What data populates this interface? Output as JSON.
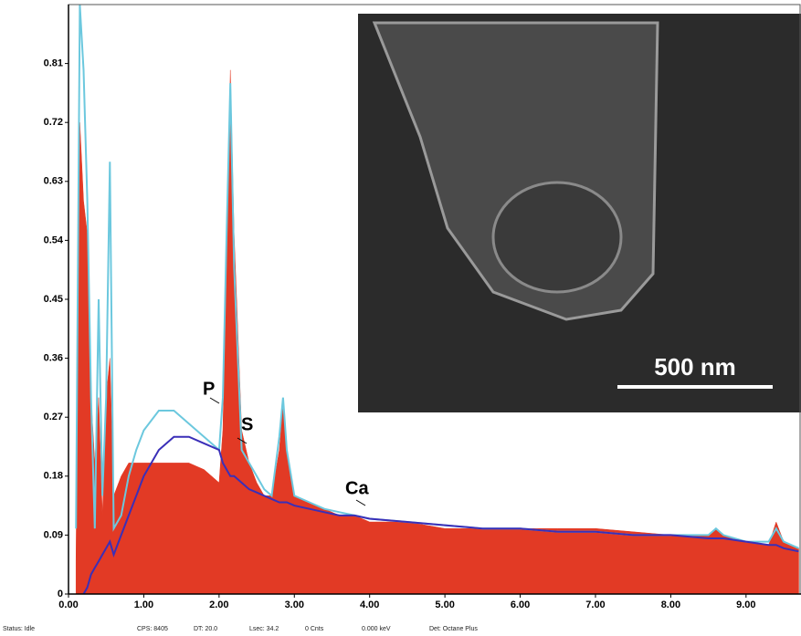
{
  "chart_data": {
    "type": "spectrum",
    "x": [
      0.1,
      0.15,
      0.2,
      0.25,
      0.3,
      0.35,
      0.4,
      0.45,
      0.5,
      0.55,
      0.6,
      0.7,
      0.8,
      0.9,
      1.0,
      1.2,
      1.4,
      1.6,
      1.8,
      2.0,
      2.05,
      2.1,
      2.15,
      2.2,
      2.3,
      2.4,
      2.5,
      2.6,
      2.7,
      2.8,
      2.85,
      2.9,
      3.0,
      3.2,
      3.4,
      3.6,
      3.8,
      4.0,
      4.5,
      5.0,
      5.5,
      6.0,
      6.5,
      7.0,
      7.5,
      8.0,
      8.5,
      8.6,
      8.7,
      9.0,
      9.3,
      9.4,
      9.5,
      9.7
    ],
    "series": [
      {
        "color": "#e23a25",
        "style": "area",
        "values": [
          0.05,
          0.72,
          0.6,
          0.55,
          0.3,
          0.2,
          0.3,
          0.12,
          0.3,
          0.36,
          0.15,
          0.18,
          0.2,
          0.2,
          0.2,
          0.2,
          0.2,
          0.2,
          0.19,
          0.17,
          0.25,
          0.5,
          0.8,
          0.55,
          0.25,
          0.2,
          0.17,
          0.15,
          0.15,
          0.22,
          0.29,
          0.22,
          0.15,
          0.14,
          0.13,
          0.12,
          0.12,
          0.11,
          0.11,
          0.1,
          0.1,
          0.1,
          0.1,
          0.1,
          0.095,
          0.09,
          0.09,
          0.1,
          0.09,
          0.08,
          0.075,
          0.11,
          0.08,
          0.07
        ]
      },
      {
        "color": "#6cc8de",
        "style": "line",
        "values": [
          0.1,
          0.9,
          0.8,
          0.6,
          0.3,
          0.1,
          0.45,
          0.15,
          0.3,
          0.66,
          0.1,
          0.12,
          0.18,
          0.22,
          0.25,
          0.28,
          0.28,
          0.26,
          0.24,
          0.22,
          0.3,
          0.55,
          0.78,
          0.5,
          0.22,
          0.2,
          0.18,
          0.16,
          0.15,
          0.24,
          0.3,
          0.22,
          0.15,
          0.14,
          0.13,
          0.125,
          0.12,
          0.115,
          0.11,
          0.105,
          0.1,
          0.1,
          0.095,
          0.095,
          0.09,
          0.09,
          0.09,
          0.1,
          0.09,
          0.08,
          0.08,
          0.1,
          0.08,
          0.07
        ]
      },
      {
        "color": "#3a2fb8",
        "style": "line",
        "values": [
          null,
          null,
          0,
          0.01,
          0.03,
          0.04,
          0.05,
          0.06,
          0.07,
          0.08,
          0.06,
          0.09,
          0.12,
          0.15,
          0.18,
          0.22,
          0.24,
          0.24,
          0.23,
          0.22,
          0.2,
          0.19,
          0.18,
          0.18,
          0.17,
          0.16,
          0.155,
          0.15,
          0.145,
          0.14,
          0.14,
          0.14,
          0.135,
          0.13,
          0.125,
          0.12,
          0.12,
          0.115,
          0.11,
          0.105,
          0.1,
          0.1,
          0.095,
          0.095,
          0.09,
          0.09,
          0.085,
          0.085,
          0.085,
          0.08,
          0.075,
          0.075,
          0.07,
          0.065
        ]
      }
    ],
    "xlim": [
      0,
      9.73
    ],
    "ylim": [
      0,
      0.9
    ],
    "xticks": [
      {
        "value": 0,
        "label": "0.00"
      },
      {
        "value": 1,
        "label": "1.00"
      },
      {
        "value": 2,
        "label": "2.00"
      },
      {
        "value": 3,
        "label": "3.00"
      },
      {
        "value": 4,
        "label": "4.00"
      },
      {
        "value": 5,
        "label": "5.00"
      },
      {
        "value": 6,
        "label": "6.00"
      },
      {
        "value": 7,
        "label": "7.00"
      },
      {
        "value": 8,
        "label": "8.00"
      },
      {
        "value": 9,
        "label": "9.00"
      }
    ],
    "yticks": [
      0,
      0.09,
      0.18,
      0.27,
      0.36,
      0.45,
      0.54,
      0.63,
      0.72,
      0.81
    ],
    "grid": false,
    "annotations": [
      "P",
      "S",
      "Ca"
    ]
  },
  "inset": {
    "scale_label": "500 nm"
  },
  "status_bar": [
    "Status: Idle",
    "CPS: 8405",
    "DT: 20.0",
    "Lsec: 34.2",
    "0 Cnts",
    "0.000 keV",
    "Det: Octane Plus"
  ]
}
